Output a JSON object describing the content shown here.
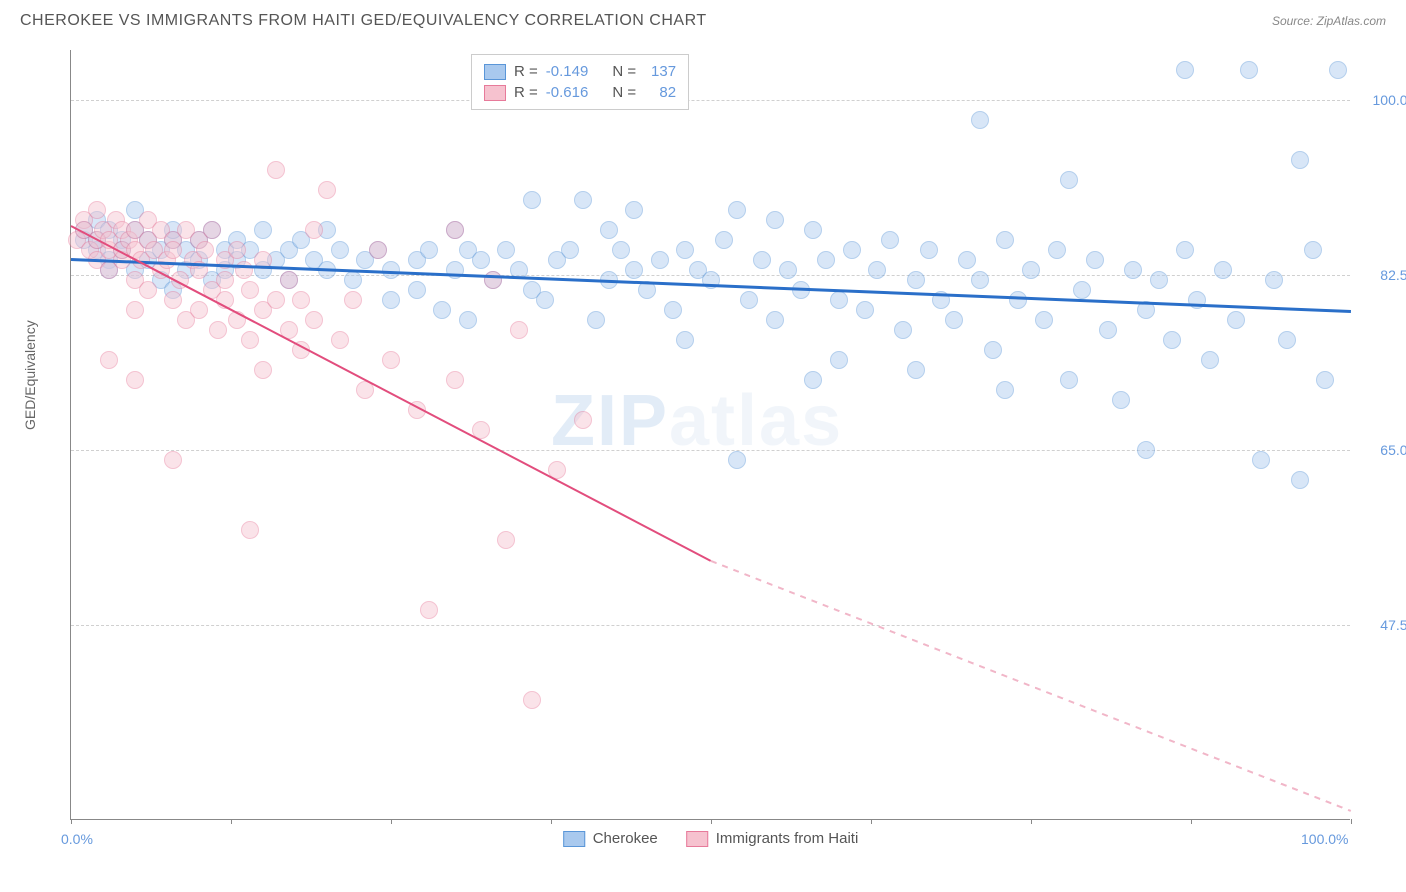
{
  "title": "CHEROKEE VS IMMIGRANTS FROM HAITI GED/EQUIVALENCY CORRELATION CHART",
  "source_label": "Source:",
  "source_name": "ZipAtlas.com",
  "ylabel": "GED/Equivalency",
  "watermark_a": "ZIP",
  "watermark_b": "atlas",
  "chart": {
    "type": "scatter",
    "xlim": [
      0,
      100
    ],
    "ylim": [
      28,
      105
    ],
    "yticks": [
      47.5,
      65.0,
      82.5,
      100.0
    ],
    "ytick_labels": [
      "47.5%",
      "65.0%",
      "82.5%",
      "100.0%"
    ],
    "xtick_positions": [
      0,
      12.5,
      25,
      37.5,
      50,
      62.5,
      75,
      87.5,
      100
    ],
    "xtick_labels": {
      "0": "0.0%",
      "100": "100.0%"
    },
    "grid_color": "#d0d0d0",
    "background_color": "#ffffff",
    "axis_color": "#888888",
    "marker_radius": 9,
    "marker_opacity": 0.45,
    "series": [
      {
        "name": "Cherokee",
        "color_fill": "#a9c9ee",
        "color_stroke": "#5a96d8",
        "R": "-0.149",
        "N": "137",
        "trend": {
          "x0": 0,
          "y0": 84.2,
          "x1": 100,
          "y1": 79.0,
          "color": "#2a6fc9",
          "width": 3,
          "dash": false
        },
        "points": [
          [
            1,
            86
          ],
          [
            1,
            87
          ],
          [
            2,
            85
          ],
          [
            2,
            88
          ],
          [
            2,
            86
          ],
          [
            3,
            84
          ],
          [
            3,
            87
          ],
          [
            3,
            83
          ],
          [
            4,
            86
          ],
          [
            4,
            85
          ],
          [
            5,
            87
          ],
          [
            5,
            83
          ],
          [
            5,
            89
          ],
          [
            6,
            84
          ],
          [
            6,
            86
          ],
          [
            7,
            85
          ],
          [
            7,
            82
          ],
          [
            8,
            86
          ],
          [
            8,
            87
          ],
          [
            8,
            81
          ],
          [
            9,
            85
          ],
          [
            9,
            83
          ],
          [
            10,
            84
          ],
          [
            10,
            86
          ],
          [
            11,
            87
          ],
          [
            11,
            82
          ],
          [
            12,
            83
          ],
          [
            12,
            85
          ],
          [
            13,
            84
          ],
          [
            13,
            86
          ],
          [
            14,
            85
          ],
          [
            15,
            83
          ],
          [
            15,
            87
          ],
          [
            16,
            84
          ],
          [
            17,
            85
          ],
          [
            17,
            82
          ],
          [
            18,
            86
          ],
          [
            19,
            84
          ],
          [
            20,
            83
          ],
          [
            20,
            87
          ],
          [
            21,
            85
          ],
          [
            22,
            82
          ],
          [
            23,
            84
          ],
          [
            24,
            85
          ],
          [
            25,
            83
          ],
          [
            25,
            80
          ],
          [
            27,
            81
          ],
          [
            27,
            84
          ],
          [
            28,
            85
          ],
          [
            29,
            79
          ],
          [
            30,
            83
          ],
          [
            31,
            85
          ],
          [
            31,
            78
          ],
          [
            32,
            84
          ],
          [
            33,
            82
          ],
          [
            34,
            85
          ],
          [
            35,
            83
          ],
          [
            36,
            81
          ],
          [
            37,
            80
          ],
          [
            38,
            84
          ],
          [
            39,
            85
          ],
          [
            40,
            90
          ],
          [
            41,
            78
          ],
          [
            42,
            82
          ],
          [
            43,
            85
          ],
          [
            44,
            83
          ],
          [
            44,
            89
          ],
          [
            45,
            81
          ],
          [
            46,
            84
          ],
          [
            47,
            79
          ],
          [
            48,
            85
          ],
          [
            49,
            83
          ],
          [
            50,
            82
          ],
          [
            51,
            86
          ],
          [
            52,
            89
          ],
          [
            52,
            64
          ],
          [
            53,
            80
          ],
          [
            54,
            84
          ],
          [
            55,
            78
          ],
          [
            56,
            83
          ],
          [
            57,
            81
          ],
          [
            58,
            87
          ],
          [
            58,
            72
          ],
          [
            59,
            84
          ],
          [
            60,
            80
          ],
          [
            61,
            85
          ],
          [
            62,
            79
          ],
          [
            63,
            83
          ],
          [
            64,
            86
          ],
          [
            65,
            77
          ],
          [
            66,
            82
          ],
          [
            66,
            73
          ],
          [
            67,
            85
          ],
          [
            68,
            80
          ],
          [
            69,
            78
          ],
          [
            70,
            84
          ],
          [
            71,
            82
          ],
          [
            72,
            75
          ],
          [
            73,
            86
          ],
          [
            73,
            71
          ],
          [
            74,
            80
          ],
          [
            75,
            83
          ],
          [
            76,
            78
          ],
          [
            77,
            85
          ],
          [
            78,
            72
          ],
          [
            79,
            81
          ],
          [
            80,
            84
          ],
          [
            81,
            77
          ],
          [
            82,
            70
          ],
          [
            83,
            83
          ],
          [
            84,
            79
          ],
          [
            84,
            65
          ],
          [
            85,
            82
          ],
          [
            86,
            76
          ],
          [
            87,
            85
          ],
          [
            88,
            80
          ],
          [
            89,
            74
          ],
          [
            90,
            83
          ],
          [
            91,
            78
          ],
          [
            92,
            103
          ],
          [
            93,
            64
          ],
          [
            94,
            82
          ],
          [
            95,
            76
          ],
          [
            96,
            94
          ],
          [
            96,
            62
          ],
          [
            97,
            85
          ],
          [
            98,
            72
          ],
          [
            99,
            103
          ],
          [
            87,
            103
          ],
          [
            71,
            98
          ],
          [
            78,
            92
          ],
          [
            60,
            74
          ],
          [
            55,
            88
          ],
          [
            48,
            76
          ],
          [
            42,
            87
          ],
          [
            36,
            90
          ],
          [
            30,
            87
          ]
        ]
      },
      {
        "name": "Immigrants from Haiti",
        "color_fill": "#f6c2cf",
        "color_stroke": "#e77a9a",
        "R": "-0.616",
        "N": "82",
        "trend_solid": {
          "x0": 0,
          "y0": 87.5,
          "x1": 50,
          "y1": 54.0,
          "color": "#e24d7d",
          "width": 2
        },
        "trend_dash": {
          "x0": 50,
          "y0": 54.0,
          "x1": 100,
          "y1": 29.0,
          "color": "#f1b6c8",
          "width": 1.5
        },
        "points": [
          [
            0.5,
            86
          ],
          [
            1,
            88
          ],
          [
            1,
            87
          ],
          [
            1.5,
            85
          ],
          [
            2,
            86
          ],
          [
            2,
            89
          ],
          [
            2,
            84
          ],
          [
            2.5,
            87
          ],
          [
            3,
            85
          ],
          [
            3,
            86
          ],
          [
            3,
            83
          ],
          [
            3.5,
            88
          ],
          [
            4,
            87
          ],
          [
            4,
            84
          ],
          [
            4,
            85
          ],
          [
            4.5,
            86
          ],
          [
            5,
            82
          ],
          [
            5,
            87
          ],
          [
            5,
            85
          ],
          [
            5,
            79
          ],
          [
            5.5,
            84
          ],
          [
            6,
            86
          ],
          [
            6,
            88
          ],
          [
            6,
            81
          ],
          [
            6.5,
            85
          ],
          [
            7,
            83
          ],
          [
            7,
            87
          ],
          [
            7.5,
            84
          ],
          [
            8,
            86
          ],
          [
            8,
            80
          ],
          [
            8,
            85
          ],
          [
            8.5,
            82
          ],
          [
            9,
            87
          ],
          [
            9,
            78
          ],
          [
            9.5,
            84
          ],
          [
            10,
            86
          ],
          [
            10,
            79
          ],
          [
            10,
            83
          ],
          [
            10.5,
            85
          ],
          [
            11,
            81
          ],
          [
            11,
            87
          ],
          [
            11.5,
            77
          ],
          [
            12,
            84
          ],
          [
            12,
            82
          ],
          [
            12,
            80
          ],
          [
            13,
            85
          ],
          [
            13,
            78
          ],
          [
            13.5,
            83
          ],
          [
            14,
            76
          ],
          [
            14,
            81
          ],
          [
            15,
            79
          ],
          [
            15,
            84
          ],
          [
            15,
            73
          ],
          [
            16,
            80
          ],
          [
            16,
            93
          ],
          [
            17,
            77
          ],
          [
            17,
            82
          ],
          [
            18,
            75
          ],
          [
            18,
            80
          ],
          [
            19,
            78
          ],
          [
            3,
            74
          ],
          [
            5,
            72
          ],
          [
            8,
            64
          ],
          [
            14,
            57
          ],
          [
            20,
            91
          ],
          [
            21,
            76
          ],
          [
            22,
            80
          ],
          [
            23,
            71
          ],
          [
            25,
            74
          ],
          [
            27,
            69
          ],
          [
            28,
            49
          ],
          [
            30,
            72
          ],
          [
            30,
            87
          ],
          [
            32,
            67
          ],
          [
            34,
            56
          ],
          [
            35,
            77
          ],
          [
            36,
            40
          ],
          [
            38,
            63
          ],
          [
            40,
            68
          ],
          [
            33,
            82
          ],
          [
            24,
            85
          ],
          [
            19,
            87
          ]
        ]
      }
    ]
  },
  "legend_top": {
    "r_label": "R =",
    "n_label": "N ="
  },
  "legend_bottom": [
    {
      "label": "Cherokee",
      "fill": "#a9c9ee",
      "stroke": "#5a96d8"
    },
    {
      "label": "Immigrants from Haiti",
      "fill": "#f6c2cf",
      "stroke": "#e77a9a"
    }
  ]
}
